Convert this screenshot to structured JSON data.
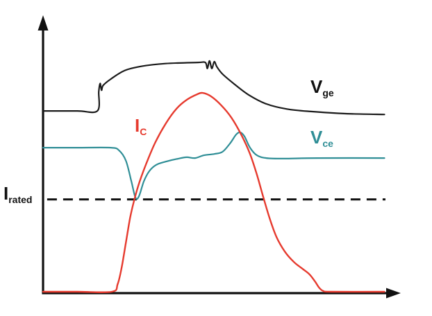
{
  "figure": {
    "background": "#ffffff",
    "axis_color": "#111111"
  },
  "labels": {
    "i_rated": {
      "main": "I",
      "sub": "rated",
      "color": "#111111"
    },
    "i_c": {
      "main": "I",
      "sub": "C",
      "color": "#e63a2e"
    },
    "v_ge": {
      "main": "V",
      "sub": "ge",
      "color": "#111111"
    },
    "v_ce": {
      "main": "V",
      "sub": "ce",
      "color": "#2f8e96"
    }
  },
  "chart_data": {
    "type": "line",
    "title": "",
    "xlabel": "",
    "ylabel": "",
    "x_range": [
      0,
      100
    ],
    "y_range": [
      0,
      100
    ],
    "grid": false,
    "legend": "inline-labels",
    "annotations": [
      {
        "name": "I_rated",
        "kind": "dashed-hline",
        "y": 34.4,
        "x_start": 1.2,
        "x_end": 99.6,
        "color": "#111111",
        "width": 3,
        "dash": "14 9"
      }
    ],
    "series": [
      {
        "name": "V_ge",
        "color": "#1a1a1a",
        "width": 2.2,
        "points": [
          [
            0,
            66.9
          ],
          [
            10,
            66.9
          ],
          [
            15.8,
            66.9
          ],
          [
            16.2,
            74.0
          ],
          [
            16.6,
            77.0
          ],
          [
            17.0,
            74.5
          ],
          [
            17.5,
            76.3
          ],
          [
            19.7,
            78.6
          ],
          [
            23.7,
            81.7
          ],
          [
            28.7,
            83.3
          ],
          [
            35.7,
            84.3
          ],
          [
            45.0,
            84.7
          ],
          [
            47.2,
            84.7
          ],
          [
            47.8,
            82.5
          ],
          [
            48.4,
            85.3
          ],
          [
            49.1,
            82.5
          ],
          [
            49.8,
            85.0
          ],
          [
            50.6,
            83.0
          ],
          [
            52.3,
            80.3
          ],
          [
            55.8,
            76.6
          ],
          [
            59.8,
            72.8
          ],
          [
            64.9,
            69.5
          ],
          [
            70.9,
            67.6
          ],
          [
            77.9,
            66.7
          ],
          [
            88.0,
            65.9
          ],
          [
            99.3,
            65.6
          ]
        ]
      },
      {
        "name": "V_ce",
        "color": "#2f8e96",
        "width": 2.2,
        "points": [
          [
            0,
            53.4
          ],
          [
            10,
            53.4
          ],
          [
            19.7,
            53.4
          ],
          [
            22.1,
            52.4
          ],
          [
            24.1,
            48.6
          ],
          [
            25.7,
            41.0
          ],
          [
            26.9,
            35.0
          ],
          [
            27.9,
            35.6
          ],
          [
            29.3,
            41.0
          ],
          [
            30.9,
            44.8
          ],
          [
            32.9,
            47.1
          ],
          [
            35.7,
            48.3
          ],
          [
            39.4,
            49.4
          ],
          [
            41.8,
            49.9
          ],
          [
            44.2,
            49.6
          ],
          [
            46.8,
            50.6
          ],
          [
            49.8,
            51.1
          ],
          [
            52.2,
            51.9
          ],
          [
            54.4,
            55.0
          ],
          [
            56.2,
            58.3
          ],
          [
            57.4,
            59.0
          ],
          [
            58.6,
            57.5
          ],
          [
            60.2,
            53.4
          ],
          [
            62.2,
            50.6
          ],
          [
            64.9,
            49.6
          ],
          [
            69.9,
            49.4
          ],
          [
            79.9,
            49.6
          ],
          [
            99.3,
            49.6
          ]
        ]
      },
      {
        "name": "I_C",
        "color": "#e63a2e",
        "width": 2.4,
        "points": [
          [
            0,
            0.5
          ],
          [
            10,
            0.5
          ],
          [
            20.0,
            0.5
          ],
          [
            21.7,
            3.3
          ],
          [
            22.9,
            9.7
          ],
          [
            24.1,
            18.6
          ],
          [
            25.3,
            27.5
          ],
          [
            26.5,
            34.1
          ],
          [
            28.1,
            41.0
          ],
          [
            30.1,
            47.8
          ],
          [
            32.7,
            55.5
          ],
          [
            35.7,
            62.3
          ],
          [
            38.8,
            67.7
          ],
          [
            41.8,
            71.0
          ],
          [
            44.8,
            73.0
          ],
          [
            46.4,
            73.5
          ],
          [
            48.8,
            72.3
          ],
          [
            51.8,
            69.0
          ],
          [
            54.8,
            64.4
          ],
          [
            57.8,
            57.8
          ],
          [
            60.2,
            51.1
          ],
          [
            62.2,
            43.5
          ],
          [
            64.1,
            35.1
          ],
          [
            65.9,
            27.5
          ],
          [
            67.9,
            20.6
          ],
          [
            70.3,
            15.3
          ],
          [
            72.9,
            11.5
          ],
          [
            75.5,
            8.9
          ],
          [
            77.5,
            6.9
          ],
          [
            79.1,
            4.3
          ],
          [
            80.3,
            2.0
          ],
          [
            81.5,
            0.8
          ],
          [
            83.9,
            0.5
          ],
          [
            99.3,
            0.5
          ]
        ]
      }
    ]
  }
}
